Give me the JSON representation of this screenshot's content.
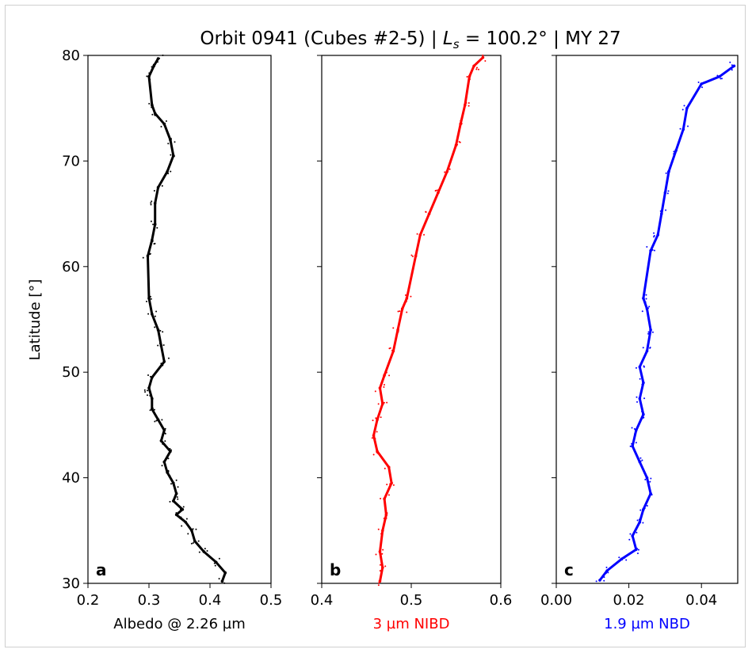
{
  "title": {
    "prefix": "Orbit 0941 (Cubes #2-5) | ",
    "ls_var": "L",
    "ls_sub": "s",
    "suffix": " = 100.2° | MY 27"
  },
  "y_axis_label": "Latitude [°]",
  "colors": {
    "panel_a": "#000000",
    "panel_b": "#ff0000",
    "panel_c": "#0000ff"
  },
  "chart_data": [
    {
      "type": "scatter",
      "panel_letter": "a",
      "xlabel": "Albedo @ 2.26 µm",
      "ylabel": "Latitude [°]",
      "xlim": [
        0.2,
        0.5
      ],
      "ylim": [
        30,
        80
      ],
      "xticks": [
        "0.2",
        "0.3",
        "0.4",
        "0.5"
      ],
      "yticks": [
        "30",
        "40",
        "50",
        "60",
        "70",
        "80"
      ],
      "grid": false,
      "series": [
        {
          "points": [
            [
              0.42,
              30.2
            ],
            [
              0.425,
              31
            ],
            [
              0.41,
              32
            ],
            [
              0.39,
              33
            ],
            [
              0.375,
              34
            ],
            [
              0.37,
              35
            ],
            [
              0.36,
              35.8
            ],
            [
              0.345,
              36.5
            ],
            [
              0.355,
              37
            ],
            [
              0.34,
              37.8
            ],
            [
              0.345,
              38.5
            ],
            [
              0.34,
              39.5
            ],
            [
              0.33,
              40.5
            ],
            [
              0.325,
              41.5
            ],
            [
              0.335,
              42.5
            ],
            [
              0.32,
              43.5
            ],
            [
              0.325,
              44.5
            ],
            [
              0.315,
              45.5
            ],
            [
              0.305,
              46.5
            ],
            [
              0.305,
              47.5
            ],
            [
              0.3,
              48.5
            ],
            [
              0.305,
              49.5
            ],
            [
              0.325,
              51
            ],
            [
              0.32,
              52.5
            ],
            [
              0.315,
              54
            ],
            [
              0.305,
              55.5
            ],
            [
              0.3,
              57
            ],
            [
              0.298,
              61
            ],
            [
              0.305,
              62.5
            ],
            [
              0.31,
              64
            ],
            [
              0.31,
              66
            ],
            [
              0.315,
              67.5
            ],
            [
              0.33,
              69
            ],
            [
              0.34,
              70.5
            ],
            [
              0.335,
              72
            ],
            [
              0.325,
              73.5
            ],
            [
              0.31,
              74.5
            ],
            [
              0.305,
              75.3
            ],
            [
              0.3,
              78
            ],
            [
              0.308,
              79
            ],
            [
              0.315,
              79.7
            ]
          ]
        }
      ]
    },
    {
      "type": "scatter",
      "panel_letter": "b",
      "xlabel": "3 µm NIBD",
      "ylabel": "Latitude [°]",
      "xlim": [
        0.4,
        0.6
      ],
      "ylim": [
        30,
        80
      ],
      "xticks": [
        "0.4",
        "0.5",
        "0.6"
      ],
      "yticks": [
        "30",
        "40",
        "50",
        "60",
        "70",
        "80"
      ],
      "grid": false,
      "series": [
        {
          "points": [
            [
              0.465,
              30.2
            ],
            [
              0.468,
              31.5
            ],
            [
              0.465,
              33
            ],
            [
              0.468,
              35
            ],
            [
              0.472,
              36.5
            ],
            [
              0.47,
              38
            ],
            [
              0.478,
              39.5
            ],
            [
              0.475,
              41
            ],
            [
              0.462,
              42.5
            ],
            [
              0.458,
              44
            ],
            [
              0.462,
              45.5
            ],
            [
              0.468,
              47
            ],
            [
              0.465,
              48.5
            ],
            [
              0.47,
              49.7
            ],
            [
              0.48,
              52
            ],
            [
              0.485,
              54
            ],
            [
              0.49,
              56
            ],
            [
              0.495,
              57
            ],
            [
              0.505,
              61
            ],
            [
              0.51,
              63
            ],
            [
              0.52,
              65
            ],
            [
              0.53,
              67
            ],
            [
              0.54,
              69
            ],
            [
              0.55,
              71.5
            ],
            [
              0.555,
              73.5
            ],
            [
              0.56,
              75.3
            ],
            [
              0.565,
              78
            ],
            [
              0.57,
              79
            ],
            [
              0.58,
              79.8
            ]
          ]
        }
      ]
    },
    {
      "type": "scatter",
      "panel_letter": "c",
      "xlabel": "1.9 µm NBD",
      "ylabel": "Latitude [°]",
      "xlim": [
        0.0,
        0.05
      ],
      "ylim": [
        30,
        80
      ],
      "xticks": [
        "0.00",
        "0.02",
        "0.04"
      ],
      "yticks": [
        "30",
        "40",
        "50",
        "60",
        "70",
        "80"
      ],
      "grid": false,
      "series": [
        {
          "points": [
            [
              0.012,
              30.3
            ],
            [
              0.014,
              31.2
            ],
            [
              0.018,
              32.3
            ],
            [
              0.022,
              33.2
            ],
            [
              0.021,
              34.5
            ],
            [
              0.023,
              35.8
            ],
            [
              0.024,
              37
            ],
            [
              0.026,
              38.5
            ],
            [
              0.025,
              40
            ],
            [
              0.023,
              41.5
            ],
            [
              0.021,
              43
            ],
            [
              0.022,
              44.5
            ],
            [
              0.024,
              46
            ],
            [
              0.023,
              47.5
            ],
            [
              0.024,
              49
            ],
            [
              0.023,
              50.5
            ],
            [
              0.025,
              52
            ],
            [
              0.026,
              54
            ],
            [
              0.025,
              56
            ],
            [
              0.024,
              57
            ],
            [
              0.026,
              61.5
            ],
            [
              0.028,
              63
            ],
            [
              0.029,
              65
            ],
            [
              0.03,
              67
            ],
            [
              0.031,
              69
            ],
            [
              0.033,
              71
            ],
            [
              0.035,
              73
            ],
            [
              0.036,
              75
            ],
            [
              0.04,
              77.3
            ],
            [
              0.045,
              78
            ],
            [
              0.049,
              79
            ]
          ]
        }
      ]
    }
  ]
}
